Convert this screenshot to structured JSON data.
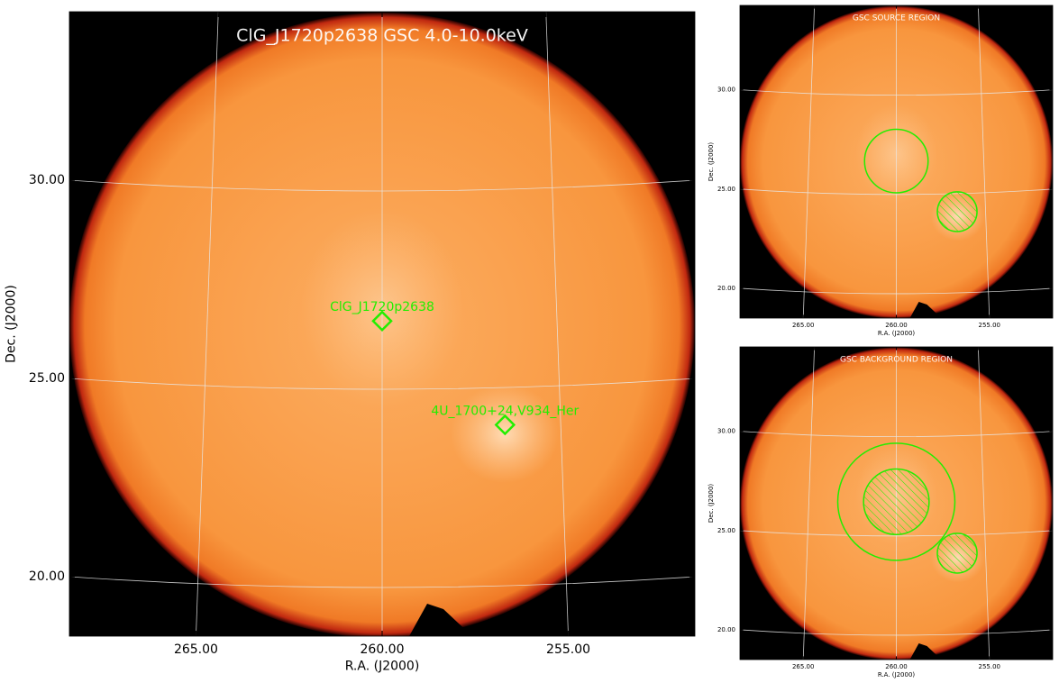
{
  "chart_data": [
    {
      "type": "image",
      "title": "ClG_J1720p2638 GSC 4.0-10.0keV",
      "xlabel": "R.A. (J2000)",
      "ylabel": "Dec. (J2000)",
      "xlim": [
        268.4,
        251.6
      ],
      "ylim": [
        18.5,
        34.25
      ],
      "xticks": [
        {
          "value": 265,
          "label": "265.00"
        },
        {
          "value": 260,
          "label": "260.00"
        },
        {
          "value": 255,
          "label": "255.00"
        }
      ],
      "yticks": [
        {
          "value": 20,
          "label": "20.00"
        },
        {
          "value": 25,
          "label": "25.00"
        },
        {
          "value": 30,
          "label": "30.00"
        }
      ],
      "grid": true,
      "color": "#22ee00",
      "markers": [
        {
          "label": "ClG_J1720p2638",
          "x": 260.0,
          "y": 26.45
        },
        {
          "label": "4U_1700+24,V934_Her",
          "x": 256.7,
          "y": 23.83
        }
      ]
    },
    {
      "type": "image",
      "title": "GSC SOURCE REGION",
      "xlabel": "R.A. (J2000)",
      "ylabel": "Dec. (J2000)",
      "xlim": [
        268.4,
        251.6
      ],
      "ylim": [
        18.5,
        34.25
      ],
      "xticks": [
        {
          "value": 265,
          "label": "265.00"
        },
        {
          "value": 260,
          "label": "260.00"
        },
        {
          "value": 255,
          "label": "255.00"
        }
      ],
      "yticks": [
        {
          "value": 20,
          "label": "20.00"
        },
        {
          "value": 25,
          "label": "25.00"
        },
        {
          "value": 30,
          "label": "30.00"
        }
      ],
      "grid": true,
      "color": "#22ee00",
      "regions": [
        {
          "x": 260.0,
          "y": 26.41,
          "r": 1.6,
          "hatch": false
        },
        {
          "x": 256.73,
          "y": 23.86,
          "r": 1.0,
          "hatch": true
        }
      ]
    },
    {
      "type": "image",
      "title": "GSC BACKGROUND REGION",
      "xlabel": "R.A. (J2000)",
      "ylabel": "Dec. (J2000)",
      "xlim": [
        268.4,
        251.6
      ],
      "ylim": [
        18.5,
        34.25
      ],
      "xticks": [
        {
          "value": 265,
          "label": "265.00"
        },
        {
          "value": 260,
          "label": "260.00"
        },
        {
          "value": 255,
          "label": "255.00"
        }
      ],
      "yticks": [
        {
          "value": 20,
          "label": "20.00"
        },
        {
          "value": 25,
          "label": "25.00"
        },
        {
          "value": 30,
          "label": "30.00"
        }
      ],
      "grid": true,
      "color": "#22ee00",
      "regions": [
        {
          "x": 260.0,
          "y": 26.45,
          "r": 2.95,
          "hatch": false
        },
        {
          "x": 260.0,
          "y": 26.45,
          "r": 1.65,
          "hatch": true
        },
        {
          "x": 256.73,
          "y": 23.86,
          "r": 1.0,
          "hatch": true
        }
      ]
    }
  ]
}
